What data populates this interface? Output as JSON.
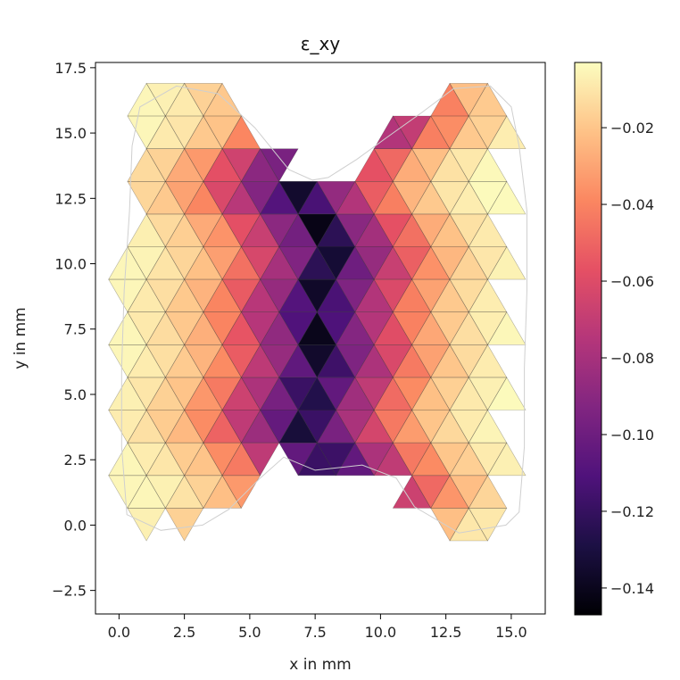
{
  "chart_data": {
    "type": "heatmap",
    "title": "ε_xy",
    "xlabel": "x in mm",
    "ylabel": "y in mm",
    "xlim": [
      -0.9,
      16.3
    ],
    "ylim": [
      -3.4,
      17.7
    ],
    "x_ticks": [
      0.0,
      2.5,
      5.0,
      7.5,
      10.0,
      12.5,
      15.0
    ],
    "x_tick_labels": [
      "0.0",
      "2.5",
      "5.0",
      "7.5",
      "10.0",
      "12.5",
      "15.0"
    ],
    "y_ticks": [
      -2.5,
      0.0,
      2.5,
      5.0,
      7.5,
      10.0,
      12.5,
      15.0,
      17.5
    ],
    "y_tick_labels": [
      "−2.5",
      "0.0",
      "2.5",
      "5.0",
      "7.5",
      "10.0",
      "12.5",
      "15.0",
      "17.5"
    ],
    "colorbar": {
      "colormap": "magma",
      "range": [
        -0.147,
        -0.003
      ],
      "ticks": [
        -0.14,
        -0.12,
        -0.1,
        -0.08,
        -0.06,
        -0.04,
        -0.02
      ],
      "tick_labels": [
        "−0.14",
        "−0.12",
        "−0.10",
        "−0.08",
        "−0.06",
        "−0.04",
        "−0.02"
      ]
    },
    "grid": false,
    "mesh": {
      "outline": [
        [
          0.8,
          16.0
        ],
        [
          2.2,
          16.8
        ],
        [
          3.8,
          16.5
        ],
        [
          5.2,
          15.2
        ],
        [
          6.5,
          13.6
        ],
        [
          7.4,
          13.2
        ],
        [
          8.0,
          13.3
        ],
        [
          9.1,
          14.0
        ],
        [
          10.2,
          14.8
        ],
        [
          11.6,
          15.8
        ],
        [
          12.8,
          16.7
        ],
        [
          14.2,
          16.8
        ],
        [
          15.0,
          16.0
        ],
        [
          15.3,
          14.5
        ],
        [
          15.6,
          12.0
        ],
        [
          15.6,
          9.0
        ],
        [
          15.5,
          6.0
        ],
        [
          15.5,
          3.0
        ],
        [
          15.3,
          0.5
        ],
        [
          14.8,
          0.0
        ],
        [
          13.0,
          -0.3
        ],
        [
          11.3,
          0.7
        ],
        [
          10.6,
          1.8
        ],
        [
          9.3,
          2.3
        ],
        [
          7.5,
          2.1
        ],
        [
          6.3,
          2.6
        ],
        [
          5.4,
          1.8
        ],
        [
          4.2,
          0.6
        ],
        [
          3.2,
          0.0
        ],
        [
          1.6,
          -0.2
        ],
        [
          0.3,
          0.4
        ],
        [
          0.1,
          3.0
        ],
        [
          0.1,
          6.0
        ],
        [
          0.2,
          9.0
        ],
        [
          0.4,
          12.0
        ],
        [
          0.5,
          14.5
        ]
      ],
      "wireframe_color": "#cfcfcf"
    },
    "strain_field_bands": [
      {
        "x_center": 0.4,
        "value": -0.005
      },
      {
        "x_center": 1.6,
        "value": -0.012
      },
      {
        "x_center": 2.9,
        "value": -0.022
      },
      {
        "x_center": 4.1,
        "value": -0.042
      },
      {
        "x_center": 5.3,
        "value": -0.072
      },
      {
        "x_center": 6.6,
        "value": -0.098
      },
      {
        "x_center": 7.6,
        "value": -0.143
      },
      {
        "x_center": 8.6,
        "value": -0.1
      },
      {
        "x_center": 9.8,
        "value": -0.075
      },
      {
        "x_center": 11.0,
        "value": -0.045
      },
      {
        "x_center": 12.3,
        "value": -0.022
      },
      {
        "x_center": 13.6,
        "value": -0.01
      },
      {
        "x_center": 15.0,
        "value": -0.004
      }
    ]
  }
}
